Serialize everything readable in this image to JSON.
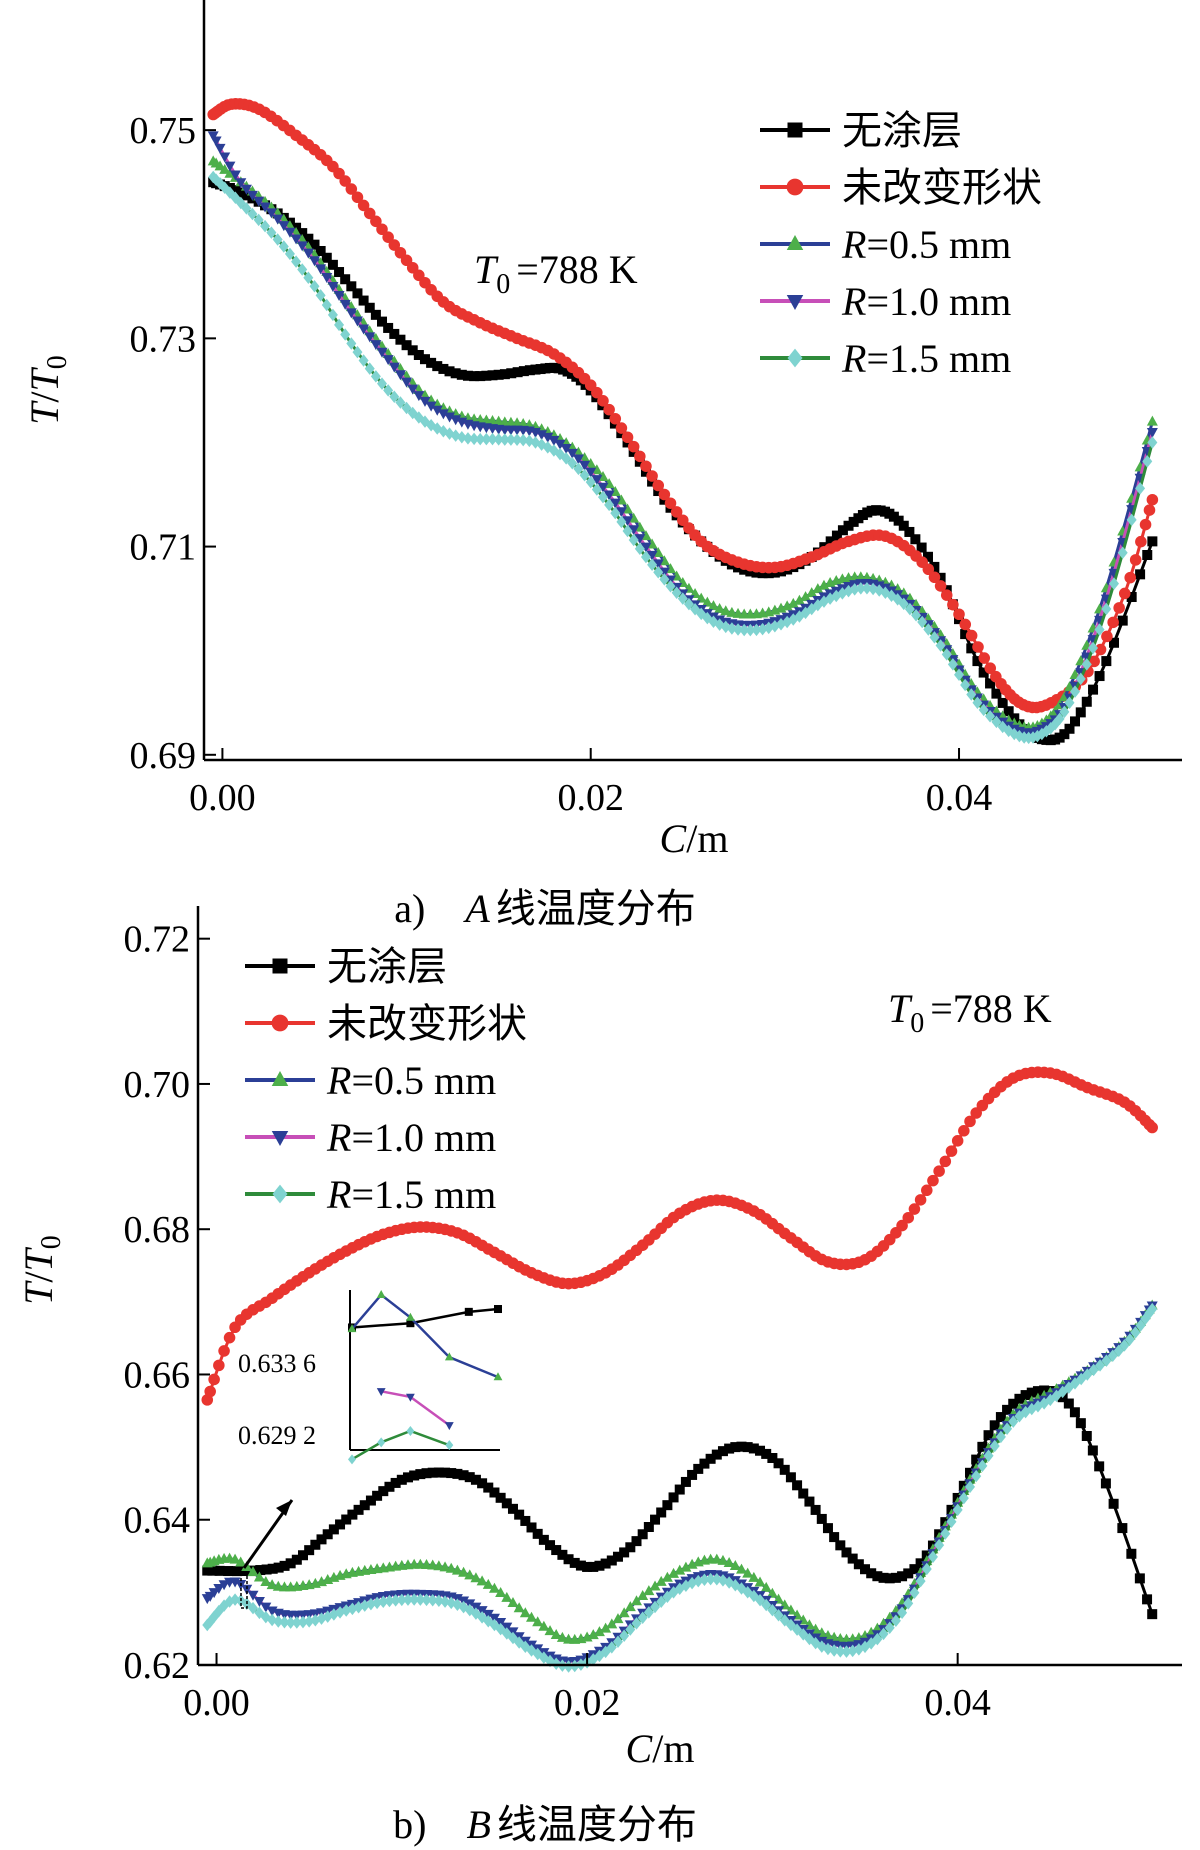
{
  "chart_data": [
    {
      "type": "line",
      "panel_caption": {
        "prefix": "a)",
        "variable": "A",
        "text": "线温度分布"
      },
      "xlabel": {
        "var": "C",
        "unit": "/m"
      },
      "ylabel": {
        "num": "T",
        "slash": "/",
        "den": "T",
        "sub": "0"
      },
      "xlim": [
        -0.001,
        0.052
      ],
      "ylim": [
        0.6895,
        0.7625
      ],
      "xticks": [
        0.0,
        0.02,
        0.04
      ],
      "xtick_labels": [
        "0.00",
        "0.02",
        "0.04"
      ],
      "yticks": [
        0.69,
        0.71,
        0.73,
        0.75
      ],
      "ytick_labels": [
        "0.69",
        "0.71",
        "0.73",
        "0.75"
      ],
      "annotation": {
        "var": "T",
        "sub": "0",
        "text": "=788 K"
      },
      "legend_position": "top-right",
      "series": [
        {
          "name": "无涂层",
          "color": "#000000",
          "marker": "square",
          "x": [
            -0.0005,
            0.001,
            0.003,
            0.005,
            0.007,
            0.009,
            0.011,
            0.013,
            0.015,
            0.017,
            0.0185,
            0.02,
            0.022,
            0.024,
            0.026,
            0.028,
            0.03,
            0.032,
            0.034,
            0.0355,
            0.037,
            0.039,
            0.041,
            0.043,
            0.0445,
            0.046,
            0.048,
            0.0505
          ],
          "y": [
            0.745,
            0.744,
            0.742,
            0.739,
            0.735,
            0.731,
            0.728,
            0.7265,
            0.7265,
            0.727,
            0.727,
            0.725,
            0.72,
            0.7145,
            0.7105,
            0.708,
            0.7075,
            0.709,
            0.712,
            0.7135,
            0.712,
            0.707,
            0.699,
            0.6935,
            0.6915,
            0.6925,
            0.699,
            0.7105
          ]
        },
        {
          "name": "未改变形状",
          "color": "#e8352f",
          "marker": "circle",
          "x": [
            -0.0005,
            0.0005,
            0.002,
            0.004,
            0.006,
            0.008,
            0.01,
            0.012,
            0.014,
            0.016,
            0.018,
            0.02,
            0.022,
            0.024,
            0.026,
            0.028,
            0.03,
            0.032,
            0.034,
            0.036,
            0.038,
            0.04,
            0.042,
            0.0435,
            0.045,
            0.047,
            0.049,
            0.0505
          ],
          "y": [
            0.7515,
            0.7525,
            0.752,
            0.7495,
            0.7465,
            0.742,
            0.7375,
            0.7335,
            0.7315,
            0.73,
            0.7285,
            0.7255,
            0.7205,
            0.715,
            0.7105,
            0.7085,
            0.708,
            0.709,
            0.7105,
            0.711,
            0.7085,
            0.7035,
            0.6975,
            0.6948,
            0.695,
            0.698,
            0.7055,
            0.7145
          ]
        },
        {
          "name": "R=0.5 mm",
          "color": "#2b3f96",
          "marker": "triangle-up",
          "marker_color": "#4daf4a",
          "x": [
            -0.0005,
            0.001,
            0.003,
            0.005,
            0.007,
            0.009,
            0.011,
            0.013,
            0.015,
            0.017,
            0.019,
            0.021,
            0.023,
            0.025,
            0.027,
            0.029,
            0.031,
            0.033,
            0.035,
            0.037,
            0.039,
            0.041,
            0.043,
            0.0445,
            0.046,
            0.048,
            0.0505
          ],
          "y": [
            0.747,
            0.745,
            0.742,
            0.738,
            0.733,
            0.7285,
            0.7245,
            0.7225,
            0.722,
            0.7215,
            0.7195,
            0.716,
            0.711,
            0.7065,
            0.704,
            0.7035,
            0.7045,
            0.7065,
            0.707,
            0.7055,
            0.7015,
            0.696,
            0.693,
            0.693,
            0.6965,
            0.706,
            0.722
          ]
        },
        {
          "name": "R=1.0 mm",
          "color": "#c74fb8",
          "marker": "triangle-down",
          "marker_color": "#2b3f96",
          "x": [
            -0.0005,
            0.001,
            0.003,
            0.005,
            0.007,
            0.009,
            0.011,
            0.013,
            0.015,
            0.017,
            0.019,
            0.021,
            0.023,
            0.025,
            0.027,
            0.029,
            0.031,
            0.033,
            0.035,
            0.037,
            0.039,
            0.041,
            0.043,
            0.0445,
            0.046,
            0.048,
            0.0505
          ],
          "y": [
            0.7495,
            0.745,
            0.7415,
            0.7375,
            0.7325,
            0.728,
            0.724,
            0.722,
            0.7213,
            0.721,
            0.719,
            0.715,
            0.71,
            0.7055,
            0.703,
            0.7025,
            0.7035,
            0.7055,
            0.7065,
            0.705,
            0.701,
            0.6955,
            0.6925,
            0.6925,
            0.6955,
            0.705,
            0.721
          ]
        },
        {
          "name": "R=1.5 mm",
          "color": "#2e8b3a",
          "marker": "diamond",
          "marker_color": "#7fd3d0",
          "x": [
            -0.0005,
            0.001,
            0.003,
            0.005,
            0.007,
            0.009,
            0.011,
            0.013,
            0.015,
            0.017,
            0.019,
            0.021,
            0.023,
            0.025,
            0.027,
            0.029,
            0.031,
            0.033,
            0.035,
            0.037,
            0.039,
            0.041,
            0.043,
            0.0445,
            0.046,
            0.048,
            0.0505
          ],
          "y": [
            0.7455,
            0.743,
            0.7395,
            0.735,
            0.7295,
            0.725,
            0.722,
            0.7205,
            0.7203,
            0.72,
            0.718,
            0.714,
            0.709,
            0.705,
            0.7025,
            0.702,
            0.703,
            0.705,
            0.706,
            0.7045,
            0.7005,
            0.695,
            0.692,
            0.692,
            0.695,
            0.704,
            0.72
          ]
        }
      ]
    },
    {
      "type": "line",
      "panel_caption": {
        "prefix": "b)",
        "variable": "B",
        "text": "线温度分布"
      },
      "xlabel": {
        "var": "C",
        "unit": "/m"
      },
      "ylabel": {
        "num": "T",
        "slash": "/",
        "den": "T",
        "sub": "0"
      },
      "xlim": [
        -0.001,
        0.052
      ],
      "ylim": [
        0.62,
        0.7245
      ],
      "xticks": [
        0.0,
        0.02,
        0.04
      ],
      "xtick_labels": [
        "0.00",
        "0.02",
        "0.04"
      ],
      "yticks": [
        0.62,
        0.64,
        0.66,
        0.68,
        0.7,
        0.72
      ],
      "ytick_labels": [
        "0.62",
        "0.64",
        "0.66",
        "0.68",
        "0.70",
        "0.72"
      ],
      "annotation": {
        "var": "T",
        "sub": "0",
        "text": "=788 K"
      },
      "legend_position": "top-left",
      "inset": {
        "ytick_labels": [
          "0.633 6",
          "0.629 2"
        ]
      },
      "series": [
        {
          "name": "无涂层",
          "color": "#000000",
          "marker": "square",
          "x": [
            -0.0005,
            0.002,
            0.004,
            0.006,
            0.008,
            0.01,
            0.012,
            0.014,
            0.016,
            0.018,
            0.02,
            0.022,
            0.024,
            0.026,
            0.028,
            0.03,
            0.032,
            0.034,
            0.036,
            0.038,
            0.04,
            0.042,
            0.044,
            0.046,
            0.048,
            0.0505
          ],
          "y": [
            0.633,
            0.633,
            0.634,
            0.638,
            0.642,
            0.6455,
            0.6465,
            0.6455,
            0.6415,
            0.6365,
            0.6335,
            0.6355,
            0.641,
            0.647,
            0.65,
            0.6485,
            0.6425,
            0.6355,
            0.632,
            0.634,
            0.643,
            0.653,
            0.6575,
            0.656,
            0.645,
            0.627
          ]
        },
        {
          "name": "未改变形状",
          "color": "#e8352f",
          "marker": "circle",
          "x": [
            -0.0005,
            0.001,
            0.003,
            0.005,
            0.007,
            0.009,
            0.011,
            0.013,
            0.015,
            0.017,
            0.019,
            0.021,
            0.023,
            0.025,
            0.027,
            0.029,
            0.031,
            0.033,
            0.035,
            0.037,
            0.039,
            0.041,
            0.043,
            0.045,
            0.047,
            0.049,
            0.0505
          ],
          "y": [
            0.6565,
            0.6665,
            0.6705,
            0.674,
            0.677,
            0.6793,
            0.6803,
            0.6795,
            0.6768,
            0.674,
            0.6725,
            0.674,
            0.6778,
            0.6822,
            0.684,
            0.6825,
            0.6788,
            0.6755,
            0.6758,
            0.6805,
            0.688,
            0.696,
            0.7008,
            0.7015,
            0.6995,
            0.6975,
            0.694
          ]
        },
        {
          "name": "R=0.5 mm",
          "color": "#2b3f96",
          "marker": "triangle-up",
          "marker_color": "#4daf4a",
          "x": [
            -0.0005,
            0.001,
            0.003,
            0.005,
            0.007,
            0.009,
            0.011,
            0.013,
            0.015,
            0.017,
            0.019,
            0.021,
            0.023,
            0.025,
            0.027,
            0.029,
            0.031,
            0.033,
            0.035,
            0.037,
            0.039,
            0.041,
            0.043,
            0.045,
            0.047,
            0.049,
            0.0505
          ],
          "y": [
            0.634,
            0.6345,
            0.631,
            0.631,
            0.6325,
            0.6333,
            0.6338,
            0.633,
            0.6305,
            0.6265,
            0.6235,
            0.625,
            0.6295,
            0.633,
            0.6345,
            0.632,
            0.6275,
            0.624,
            0.624,
            0.6285,
            0.6375,
            0.647,
            0.6545,
            0.6575,
            0.6605,
            0.6645,
            0.6695
          ]
        },
        {
          "name": "R=1.0 mm",
          "color": "#c74fb8",
          "marker": "triangle-down",
          "marker_color": "#2b3f96",
          "x": [
            -0.0005,
            0.001,
            0.003,
            0.005,
            0.007,
            0.009,
            0.011,
            0.013,
            0.015,
            0.017,
            0.019,
            0.021,
            0.023,
            0.025,
            0.027,
            0.029,
            0.031,
            0.033,
            0.035,
            0.037,
            0.039,
            0.041,
            0.043,
            0.045,
            0.047,
            0.049,
            0.0505
          ],
          "y": [
            0.6292,
            0.6315,
            0.6275,
            0.627,
            0.6282,
            0.6295,
            0.6298,
            0.6292,
            0.6265,
            0.6228,
            0.6205,
            0.6225,
            0.6272,
            0.6312,
            0.6325,
            0.6302,
            0.6262,
            0.623,
            0.6232,
            0.6278,
            0.637,
            0.6465,
            0.654,
            0.657,
            0.6605,
            0.6645,
            0.6695
          ]
        },
        {
          "name": "R=1.5 mm",
          "color": "#2e8b3a",
          "marker": "diamond",
          "marker_color": "#7fd3d0",
          "x": [
            -0.0005,
            0.001,
            0.003,
            0.005,
            0.007,
            0.009,
            0.011,
            0.013,
            0.015,
            0.017,
            0.019,
            0.021,
            0.023,
            0.025,
            0.027,
            0.029,
            0.031,
            0.033,
            0.035,
            0.037,
            0.039,
            0.041,
            0.043,
            0.045,
            0.047,
            0.049,
            0.0505
          ],
          "y": [
            0.6255,
            0.629,
            0.6262,
            0.626,
            0.6275,
            0.6287,
            0.629,
            0.6283,
            0.6255,
            0.622,
            0.6198,
            0.6218,
            0.6265,
            0.6305,
            0.6318,
            0.6295,
            0.6255,
            0.6222,
            0.6225,
            0.6272,
            0.6365,
            0.646,
            0.6535,
            0.6565,
            0.66,
            0.664,
            0.669
          ]
        }
      ]
    }
  ]
}
